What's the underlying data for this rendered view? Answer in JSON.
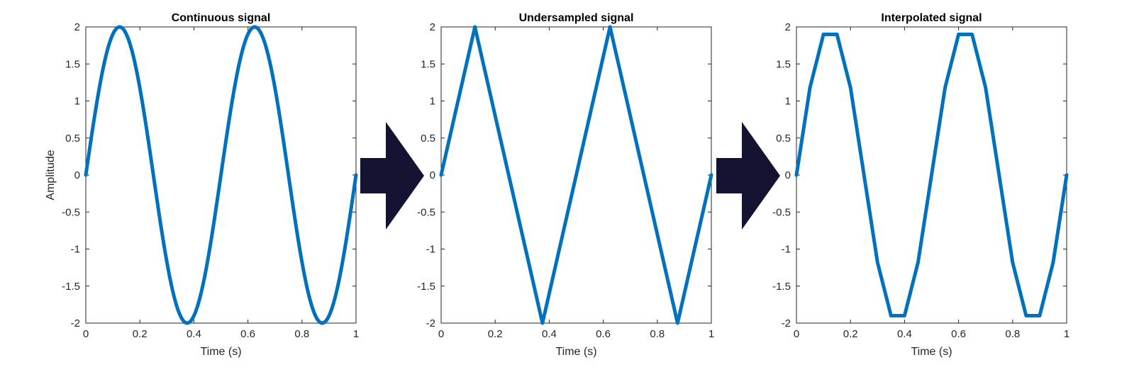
{
  "figure": {
    "arrow_color": "#141432",
    "line_color": "#0072BD",
    "axes_color": "#262626"
  },
  "chart_data": [
    {
      "type": "line",
      "title": "Continuous signal",
      "xlabel": "Time (s)",
      "ylabel": "Amplitude",
      "xlim": [
        0,
        1
      ],
      "ylim": [
        -2,
        2
      ],
      "xticks": [
        0,
        0.2,
        0.4,
        0.6,
        0.8,
        1
      ],
      "xtick_labels": [
        "0",
        "0.2",
        "0.4",
        "0.6",
        "0.8",
        "1"
      ],
      "yticks": [
        -2,
        -1.5,
        -1,
        -0.5,
        0,
        0.5,
        1,
        1.5,
        2
      ],
      "ytick_labels": [
        "-2",
        "-1.5",
        "-1",
        "-0.5",
        "0",
        "0.5",
        "1",
        "1.5",
        "2"
      ],
      "grid": false,
      "series": [
        {
          "function": "2*sin(4*pi*t)",
          "x_range": [
            0,
            1
          ],
          "samples": 200
        }
      ]
    },
    {
      "type": "line",
      "title": "Undersampled signal",
      "xlabel": "Time (s)",
      "ylabel": "",
      "xlim": [
        0,
        1
      ],
      "ylim": [
        -2,
        2
      ],
      "xticks": [
        0,
        0.2,
        0.4,
        0.6,
        0.8,
        1
      ],
      "xtick_labels": [
        "0",
        "0.2",
        "0.4",
        "0.6",
        "0.8",
        "1"
      ],
      "yticks": [
        -2,
        -1.5,
        -1,
        -0.5,
        0,
        0.5,
        1,
        1.5,
        2
      ],
      "ytick_labels": [
        "-2",
        "-1.5",
        "-1",
        "-0.5",
        "0",
        "0.5",
        "1",
        "1.5",
        "2"
      ],
      "grid": false,
      "series": [
        {
          "x": [
            0,
            0.125,
            0.375,
            0.625,
            0.875,
            1
          ],
          "y": [
            0,
            2,
            -2,
            2,
            -2,
            0
          ]
        }
      ]
    },
    {
      "type": "line",
      "title": "Interpolated signal",
      "xlabel": "Time (s)",
      "ylabel": "",
      "xlim": [
        0,
        1
      ],
      "ylim": [
        -2,
        2
      ],
      "xticks": [
        0,
        0.2,
        0.4,
        0.6,
        0.8,
        1
      ],
      "xtick_labels": [
        "0",
        "0.2",
        "0.4",
        "0.6",
        "0.8",
        "1"
      ],
      "yticks": [
        -2,
        -1.5,
        -1,
        -0.5,
        0,
        0.5,
        1,
        1.5,
        2
      ],
      "ytick_labels": [
        "-2",
        "-1.5",
        "-1",
        "-0.5",
        "0",
        "0.5",
        "1",
        "1.5",
        "2"
      ],
      "grid": false,
      "series": [
        {
          "x": [
            0,
            0.05,
            0.1,
            0.15,
            0.2,
            0.25,
            0.3,
            0.35,
            0.4,
            0.45,
            0.5,
            0.55,
            0.6,
            0.65,
            0.7,
            0.75,
            0.8,
            0.85,
            0.9,
            0.95,
            1
          ],
          "y": [
            0,
            1.18,
            1.9,
            1.9,
            1.18,
            0,
            -1.18,
            -1.9,
            -1.9,
            -1.18,
            0,
            1.18,
            1.9,
            1.9,
            1.18,
            0,
            -1.18,
            -1.9,
            -1.9,
            -1.18,
            0
          ]
        }
      ]
    }
  ]
}
